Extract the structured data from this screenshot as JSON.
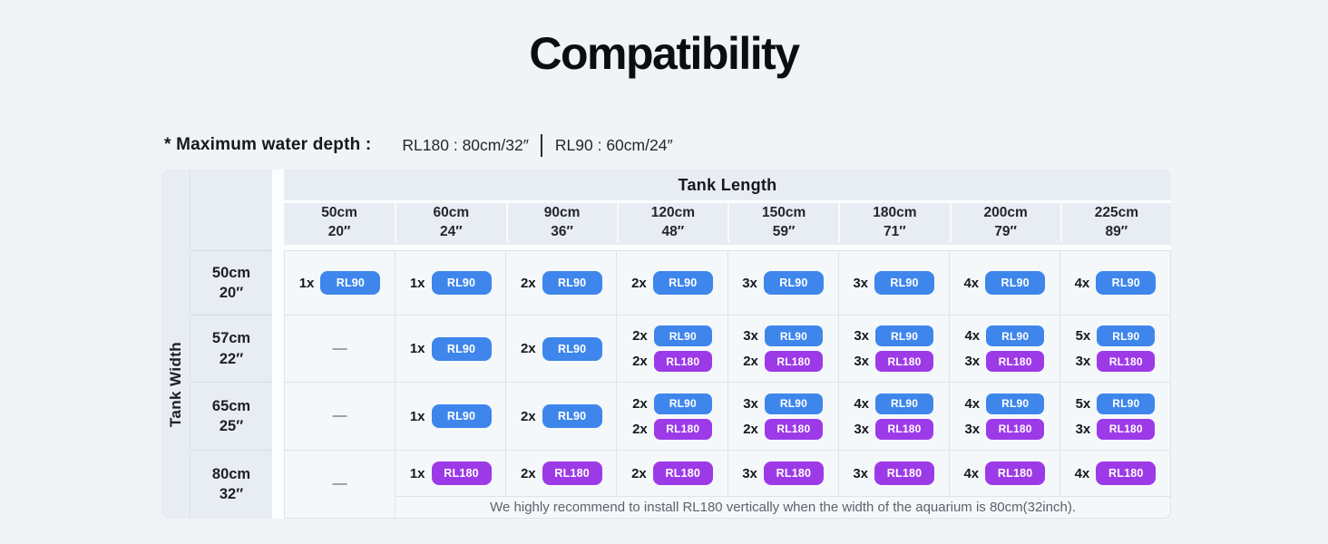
{
  "title": "Compatibility",
  "subtitle": {
    "label": "* Maximum water depth :",
    "spec_rl180": "RL180 : 80cm/32″",
    "spec_rl90": "RL90 : 60cm/24″"
  },
  "table": {
    "col_group_label": "Tank Length",
    "row_group_label": "Tank Width",
    "empty_cell": "—",
    "note": "We highly recommend to install RL180 vertically when the width of the aquarium is 80cm(32inch).",
    "badge_colors": {
      "RL90": "#3e86ec",
      "RL180": "#9d3ae8"
    },
    "columns": [
      {
        "cm": "50cm",
        "inch": "20″"
      },
      {
        "cm": "60cm",
        "inch": "24″"
      },
      {
        "cm": "90cm",
        "inch": "36″"
      },
      {
        "cm": "120cm",
        "inch": "48″"
      },
      {
        "cm": "150cm",
        "inch": "59″"
      },
      {
        "cm": "180cm",
        "inch": "71″"
      },
      {
        "cm": "200cm",
        "inch": "79″"
      },
      {
        "cm": "225cm",
        "inch": "89″"
      }
    ],
    "rows": [
      {
        "cm": "50cm",
        "inch": "20″",
        "cells": [
          [
            {
              "count": "1x",
              "model": "RL90"
            }
          ],
          [
            {
              "count": "1x",
              "model": "RL90"
            }
          ],
          [
            {
              "count": "2x",
              "model": "RL90"
            }
          ],
          [
            {
              "count": "2x",
              "model": "RL90"
            }
          ],
          [
            {
              "count": "3x",
              "model": "RL90"
            }
          ],
          [
            {
              "count": "3x",
              "model": "RL90"
            }
          ],
          [
            {
              "count": "4x",
              "model": "RL90"
            }
          ],
          [
            {
              "count": "4x",
              "model": "RL90"
            }
          ]
        ]
      },
      {
        "cm": "57cm",
        "inch": "22″",
        "cells": [
          null,
          [
            {
              "count": "1x",
              "model": "RL90"
            }
          ],
          [
            {
              "count": "2x",
              "model": "RL90"
            }
          ],
          [
            {
              "count": "2x",
              "model": "RL90"
            },
            {
              "count": "2x",
              "model": "RL180"
            }
          ],
          [
            {
              "count": "3x",
              "model": "RL90"
            },
            {
              "count": "2x",
              "model": "RL180"
            }
          ],
          [
            {
              "count": "3x",
              "model": "RL90"
            },
            {
              "count": "3x",
              "model": "RL180"
            }
          ],
          [
            {
              "count": "4x",
              "model": "RL90"
            },
            {
              "count": "3x",
              "model": "RL180"
            }
          ],
          [
            {
              "count": "5x",
              "model": "RL90"
            },
            {
              "count": "3x",
              "model": "RL180"
            }
          ]
        ]
      },
      {
        "cm": "65cm",
        "inch": "25″",
        "cells": [
          null,
          [
            {
              "count": "1x",
              "model": "RL90"
            }
          ],
          [
            {
              "count": "2x",
              "model": "RL90"
            }
          ],
          [
            {
              "count": "2x",
              "model": "RL90"
            },
            {
              "count": "2x",
              "model": "RL180"
            }
          ],
          [
            {
              "count": "3x",
              "model": "RL90"
            },
            {
              "count": "2x",
              "model": "RL180"
            }
          ],
          [
            {
              "count": "4x",
              "model": "RL90"
            },
            {
              "count": "3x",
              "model": "RL180"
            }
          ],
          [
            {
              "count": "4x",
              "model": "RL90"
            },
            {
              "count": "3x",
              "model": "RL180"
            }
          ],
          [
            {
              "count": "5x",
              "model": "RL90"
            },
            {
              "count": "3x",
              "model": "RL180"
            }
          ]
        ]
      },
      {
        "cm": "80cm",
        "inch": "32″",
        "cells": [
          null,
          [
            {
              "count": "1x",
              "model": "RL180"
            }
          ],
          [
            {
              "count": "2x",
              "model": "RL180"
            }
          ],
          [
            {
              "count": "2x",
              "model": "RL180"
            }
          ],
          [
            {
              "count": "3x",
              "model": "RL180"
            }
          ],
          [
            {
              "count": "3x",
              "model": "RL180"
            }
          ],
          [
            {
              "count": "4x",
              "model": "RL180"
            }
          ],
          [
            {
              "count": "4x",
              "model": "RL180"
            }
          ]
        ]
      }
    ]
  }
}
